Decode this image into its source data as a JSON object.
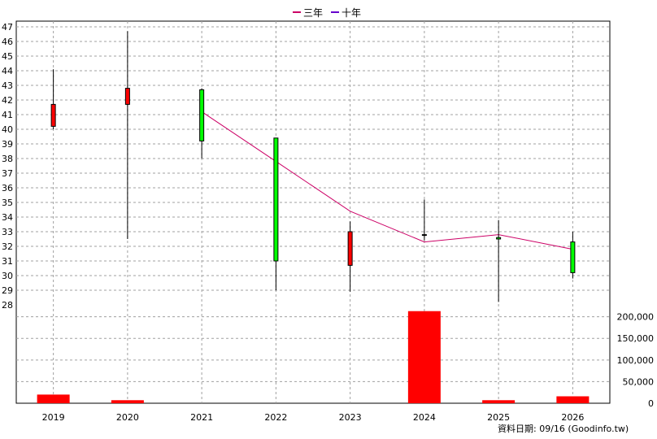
{
  "legend": {
    "items": [
      {
        "label": "三年",
        "color": "#cc0066"
      },
      {
        "label": "十年",
        "color": "#6600cc"
      }
    ]
  },
  "footer": {
    "text": "資料日期: 09/16  (Goodinfo.tw)"
  },
  "chart_data": {
    "type": "candlestick",
    "categories": [
      "2019",
      "2020",
      "2021",
      "2022",
      "2023",
      "2024",
      "2025",
      "2026"
    ],
    "price_axis": {
      "min": 28,
      "max": 47,
      "ticks": [
        28,
        29,
        30,
        31,
        32,
        33,
        34,
        35,
        36,
        37,
        38,
        39,
        40,
        41,
        42,
        43,
        44,
        45,
        46,
        47
      ]
    },
    "candles": [
      {
        "year": "2019",
        "open": 40.2,
        "high": 44.1,
        "low": 40.0,
        "close": 41.7
      },
      {
        "year": "2020",
        "open": 41.7,
        "high": 46.7,
        "low": 32.5,
        "close": 42.8
      },
      {
        "year": "2021",
        "open": 42.7,
        "high": 42.8,
        "low": 38.0,
        "close": 39.2
      },
      {
        "year": "2022",
        "open": 39.4,
        "high": 39.4,
        "low": 29.0,
        "close": 31.0
      },
      {
        "year": "2023",
        "open": 30.7,
        "high": 33.7,
        "low": 28.9,
        "close": 33.0
      },
      {
        "year": "2024",
        "open": 32.8,
        "high": 35.2,
        "low": 32.4,
        "close": 32.8
      },
      {
        "year": "2025",
        "open": 32.6,
        "high": 33.8,
        "low": 28.2,
        "close": 32.5
      },
      {
        "year": "2026",
        "open": 32.3,
        "high": 33.0,
        "low": 29.8,
        "close": 30.2
      }
    ],
    "series": [
      {
        "name": "三年",
        "color": "#cc0066",
        "points": [
          {
            "x": "2021",
            "y": 41.2
          },
          {
            "x": "2022",
            "y": 37.8
          },
          {
            "x": "2023",
            "y": 34.4
          },
          {
            "x": "2024",
            "y": 32.3
          },
          {
            "x": "2025",
            "y": 32.8
          },
          {
            "x": "2026",
            "y": 31.8
          }
        ]
      }
    ],
    "volume_axis": {
      "min": 0,
      "max": 220000,
      "ticks": [
        0,
        50000,
        100000,
        150000,
        200000
      ],
      "tick_labels": [
        "0",
        "50,000",
        "100,000",
        "150,000",
        "200,000"
      ]
    },
    "volume": [
      {
        "year": "2019",
        "value": 20000
      },
      {
        "year": "2020",
        "value": 7000
      },
      {
        "year": "2021",
        "value": 0
      },
      {
        "year": "2022",
        "value": 0
      },
      {
        "year": "2023",
        "value": 0
      },
      {
        "year": "2024",
        "value": 213000
      },
      {
        "year": "2025",
        "value": 7000
      },
      {
        "year": "2026",
        "value": 16000
      }
    ],
    "colors": {
      "up": "#ff0000",
      "down": "#00ff00",
      "volume": "#ff0000",
      "grid": "#a0a0a0"
    },
    "grid": true,
    "legend_position": "top-center"
  }
}
